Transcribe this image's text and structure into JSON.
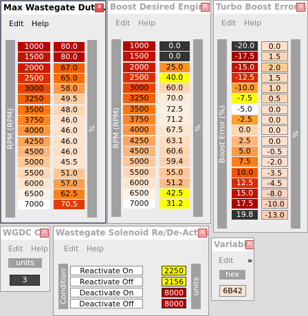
{
  "windows": {
    "wastegate_duty": {
      "title": "Max Wastegate Duty ...",
      "menu": [
        "Edit",
        "Help"
      ],
      "axis_label": "RPM (RPM)",
      "unit_label": "%",
      "rpm": [
        "1000",
        "1500",
        "2000",
        "2500",
        "3000",
        "3250",
        "3500",
        "3750",
        "4000",
        "4250",
        "4500",
        "5000",
        "5500",
        "6000",
        "6500",
        "7000"
      ],
      "values": [
        "80.0",
        "80.0",
        "67.0",
        "65.0",
        "58.0",
        "49.5",
        "48.0",
        "46.0",
        "46.0",
        "46.0",
        "46.0",
        "45.5",
        "51.0",
        "57.0",
        "62.5",
        "70.5"
      ]
    },
    "boost_desired": {
      "title": "Boost Desired Engine ...",
      "menu": [
        "Edit",
        "Help"
      ],
      "axis_label": "RPM (RPM)",
      "unit_label": "%",
      "rpm": [
        "1000",
        "1500",
        "2000",
        "2500",
        "3000",
        "3250",
        "3500",
        "3750",
        "4000",
        "4250",
        "4500",
        "5000",
        "5500",
        "6000",
        "6500",
        "7000"
      ],
      "values": [
        "0.0",
        "0.0",
        "25.0",
        "40.0",
        "60.0",
        "70.0",
        "72.5",
        "71.2",
        "67.5",
        "63.1",
        "60.6",
        "59.4",
        "55.0",
        "51.2",
        "42.5",
        "31.2"
      ]
    },
    "turbo_boost_error": {
      "title": "Turbo Boost Error ...",
      "menu": [
        "Edit",
        "Help"
      ],
      "axis_label": "Boost Error (%)",
      "unit_label": "%",
      "errors": [
        "-20.0",
        "-17.5",
        "-15.0",
        "-12.5",
        "-10.0",
        "-7.5",
        "-5.0",
        "-2.5",
        "0.0",
        "2.5",
        "5.0",
        "7.5",
        "10.0",
        "12.5",
        "15.0",
        "17.5",
        "19.8"
      ],
      "values": [
        "0.0",
        "1.5",
        "2.0",
        "1.5",
        "1.0",
        "0.5",
        "0.0",
        "0.0",
        "0.0",
        "0.0",
        "-0.5",
        "-2.0",
        "-3.5",
        "-4.5",
        "-8.0",
        "-10.0",
        "-13.0"
      ]
    },
    "wgdc": {
      "title": "WGDC C...",
      "menu": [
        "Edit",
        "Help"
      ],
      "units_label": "units",
      "value": "3"
    },
    "solenoid": {
      "title": "Wastegate Solenoid Re/De-Activa...",
      "menu": [
        "Edit",
        "Help"
      ],
      "axis_label": "Condition",
      "unit_label": "units",
      "rows": [
        {
          "label": "Reactivate On",
          "value": "2250"
        },
        {
          "label": "Reactivate Off",
          "value": "2156"
        },
        {
          "label": "Deactivate On",
          "value": "8000"
        },
        {
          "label": "Deactivate Off",
          "value": "8000"
        }
      ]
    },
    "variable": {
      "title": "Variabl...",
      "menu": [
        "Edit"
      ],
      "more": "»",
      "format_label": "hex",
      "value": "6B42"
    }
  },
  "colors": {
    "heat_high": "#cc0000",
    "heat_low": "#ffffff",
    "yellow": "#ffff00",
    "dark": "#333333"
  }
}
